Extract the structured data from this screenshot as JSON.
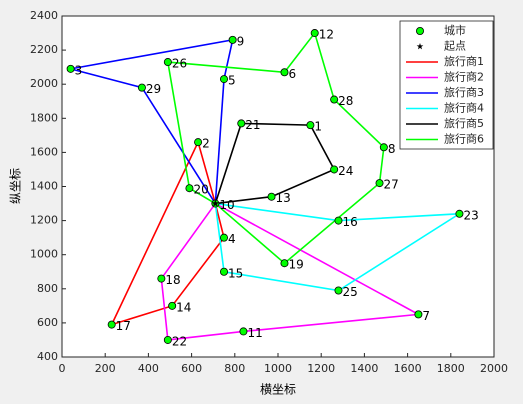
{
  "chart_data": {
    "type": "route",
    "xlabel": "横坐标",
    "ylabel": "纵坐标",
    "xlim": [
      0,
      2000
    ],
    "ylim": [
      400,
      2400
    ],
    "xticks": [
      0,
      200,
      400,
      600,
      800,
      1000,
      1200,
      1400,
      1600,
      1800,
      2000
    ],
    "yticks": [
      400,
      600,
      800,
      1000,
      1200,
      1400,
      1600,
      1800,
      2000,
      2200,
      2400
    ],
    "legend": "upper right",
    "cities": {
      "name": "城市",
      "color": "#00ff00",
      "labels": [
        1,
        2,
        3,
        4,
        5,
        6,
        7,
        8,
        9,
        10,
        11,
        12,
        13,
        14,
        15,
        16,
        17,
        18,
        19,
        20,
        21,
        22,
        23,
        24,
        25,
        26,
        27,
        28,
        29
      ],
      "x": [
        1150,
        630,
        40,
        750,
        750,
        1030,
        1650,
        1490,
        790,
        710,
        840,
        1170,
        970,
        510,
        750,
        1280,
        230,
        460,
        1030,
        590,
        830,
        490,
        1840,
        1260,
        1280,
        490,
        1470,
        1260,
        370
      ],
      "y": [
        1760,
        1660,
        2090,
        1100,
        2030,
        2070,
        650,
        1630,
        2260,
        1300,
        550,
        2300,
        1340,
        700,
        900,
        1200,
        590,
        860,
        950,
        1390,
        1770,
        500,
        1240,
        1500,
        790,
        2130,
        1420,
        1910,
        1980
      ]
    },
    "start": {
      "name": "起点",
      "color": "#000000",
      "x": 710,
      "y": 1300
    },
    "series": [
      {
        "name": "旅行商1",
        "color": "#ff0000",
        "x": [
          710,
          630,
          230,
          510,
          750,
          710
        ],
        "y": [
          1300,
          1660,
          590,
          700,
          1100,
          1300
        ]
      },
      {
        "name": "旅行商2",
        "color": "#ff00ff",
        "x": [
          710,
          1650,
          840,
          490,
          460,
          710
        ],
        "y": [
          1300,
          650,
          550,
          500,
          860,
          1300
        ]
      },
      {
        "name": "旅行商3",
        "color": "#0000ff",
        "x": [
          710,
          750,
          790,
          40,
          370,
          710
        ],
        "y": [
          1300,
          2030,
          2260,
          2090,
          1980,
          1300
        ]
      },
      {
        "name": "旅行商4",
        "color": "#00ffff",
        "x": [
          710,
          1280,
          1840,
          1280,
          750,
          710
        ],
        "y": [
          1300,
          1200,
          1240,
          790,
          900,
          1300
        ]
      },
      {
        "name": "旅行商5",
        "color": "#000000",
        "x": [
          710,
          830,
          1150,
          1260,
          970,
          710
        ],
        "y": [
          1300,
          1770,
          1760,
          1500,
          1340,
          1300
        ]
      },
      {
        "name": "旅行商6",
        "color": "#00ff00",
        "x": [
          710,
          590,
          490,
          1030,
          1170,
          1260,
          1490,
          1470,
          1030,
          710
        ],
        "y": [
          1300,
          1390,
          2130,
          2070,
          2300,
          1910,
          1630,
          1420,
          950,
          1300
        ]
      }
    ]
  }
}
